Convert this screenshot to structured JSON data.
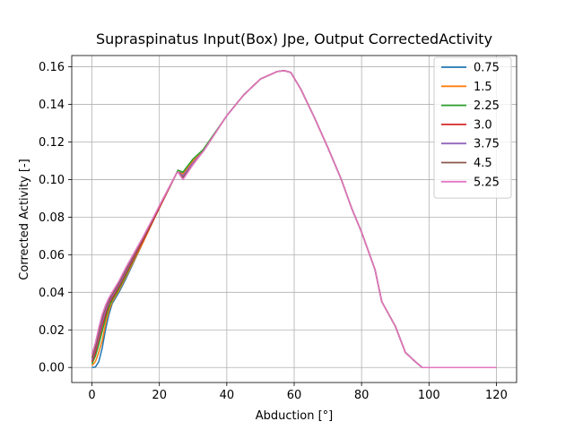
{
  "chart_data": {
    "type": "line",
    "title": "Supraspinatus Input(Box) Jpe, Output CorrectedActivity",
    "xlabel": "Abduction [°]",
    "ylabel": "Corrected Activity [-]",
    "xlim": [
      -6,
      126
    ],
    "ylim": [
      -0.008,
      0.166
    ],
    "xticks": [
      0,
      20,
      40,
      60,
      80,
      100,
      120
    ],
    "xtick_labels": [
      "0",
      "20",
      "40",
      "60",
      "80",
      "100",
      "120"
    ],
    "yticks": [
      0,
      0.02,
      0.04,
      0.06,
      0.08,
      0.1,
      0.12,
      0.14,
      0.16
    ],
    "ytick_labels": [
      "0.00",
      "0.02",
      "0.04",
      "0.06",
      "0.08",
      "0.10",
      "0.12",
      "0.14",
      "0.16"
    ],
    "grid": true,
    "legend_position": "top-right",
    "series": [
      {
        "name": "0.75",
        "color": "#1f77b4",
        "x": [
          0,
          1,
          2,
          3,
          4,
          5,
          6,
          8,
          10,
          15,
          20,
          25,
          25.5,
          27,
          30,
          33,
          40,
          45,
          50,
          55,
          57,
          59,
          62,
          66,
          70,
          74,
          77,
          80,
          84,
          86,
          90,
          93,
          96,
          98,
          100,
          120
        ],
        "y": [
          0.0,
          0.0002,
          0.003,
          0.01,
          0.02,
          0.028,
          0.034,
          0.04,
          0.047,
          0.066,
          0.085,
          0.103,
          0.104,
          0.1035,
          0.11,
          0.115,
          0.134,
          0.145,
          0.1535,
          0.1575,
          0.158,
          0.157,
          0.148,
          0.133,
          0.117,
          0.1,
          0.085,
          0.072,
          0.052,
          0.035,
          0.022,
          0.008,
          0.003,
          0.0,
          0.0,
          0.0
        ]
      },
      {
        "name": "1.5",
        "color": "#ff7f0e",
        "x": [
          0,
          1,
          2,
          3,
          4,
          5,
          6,
          8,
          10,
          15,
          20,
          25,
          25.5,
          27,
          30,
          33,
          40,
          45,
          50,
          55,
          57,
          59,
          62,
          66,
          70,
          74,
          77,
          80,
          84,
          86,
          90,
          93,
          96,
          98,
          100,
          120
        ],
        "y": [
          0.001,
          0.003,
          0.008,
          0.014,
          0.023,
          0.03,
          0.035,
          0.041,
          0.048,
          0.066,
          0.085,
          0.103,
          0.104,
          0.103,
          0.11,
          0.115,
          0.134,
          0.145,
          0.1535,
          0.1575,
          0.158,
          0.157,
          0.148,
          0.133,
          0.117,
          0.1,
          0.085,
          0.072,
          0.052,
          0.035,
          0.022,
          0.008,
          0.003,
          0.0,
          0.0,
          0.0
        ]
      },
      {
        "name": "2.25",
        "color": "#2ca02c",
        "x": [
          0,
          1,
          2,
          3,
          4,
          5,
          6,
          8,
          10,
          15,
          20,
          25,
          25.5,
          27,
          30,
          33,
          40,
          45,
          50,
          55,
          57,
          59,
          62,
          66,
          70,
          74,
          77,
          80,
          84,
          86,
          90,
          93,
          96,
          98,
          100,
          120
        ],
        "y": [
          0.002,
          0.006,
          0.012,
          0.019,
          0.026,
          0.032,
          0.036,
          0.042,
          0.049,
          0.067,
          0.085,
          0.103,
          0.105,
          0.104,
          0.111,
          0.116,
          0.134,
          0.145,
          0.1535,
          0.1575,
          0.158,
          0.157,
          0.148,
          0.133,
          0.117,
          0.1,
          0.085,
          0.072,
          0.052,
          0.035,
          0.022,
          0.008,
          0.003,
          0.0,
          0.0,
          0.0
        ]
      },
      {
        "name": "3.0",
        "color": "#d62728",
        "x": [
          0,
          1,
          2,
          3,
          4,
          5,
          6,
          8,
          10,
          15,
          20,
          25,
          25.5,
          27,
          30,
          33,
          40,
          45,
          50,
          55,
          57,
          59,
          62,
          66,
          70,
          74,
          77,
          80,
          84,
          86,
          90,
          93,
          96,
          98,
          100,
          120
        ],
        "y": [
          0.003,
          0.008,
          0.015,
          0.022,
          0.028,
          0.034,
          0.037,
          0.043,
          0.05,
          0.067,
          0.085,
          0.103,
          0.104,
          0.102,
          0.109,
          0.115,
          0.134,
          0.145,
          0.1535,
          0.1575,
          0.158,
          0.157,
          0.148,
          0.133,
          0.117,
          0.1,
          0.085,
          0.072,
          0.052,
          0.035,
          0.022,
          0.008,
          0.003,
          0.0,
          0.0,
          0.0
        ]
      },
      {
        "name": "3.75",
        "color": "#9467bd",
        "x": [
          0,
          1,
          2,
          3,
          4,
          5,
          6,
          8,
          10,
          15,
          20,
          25,
          25.5,
          27,
          30,
          33,
          40,
          45,
          50,
          55,
          57,
          59,
          62,
          66,
          70,
          74,
          77,
          80,
          84,
          86,
          90,
          93,
          96,
          98,
          100,
          120
        ],
        "y": [
          0.004,
          0.01,
          0.017,
          0.024,
          0.03,
          0.035,
          0.038,
          0.044,
          0.051,
          0.068,
          0.086,
          0.103,
          0.104,
          0.102,
          0.109,
          0.115,
          0.134,
          0.145,
          0.1535,
          0.1575,
          0.158,
          0.157,
          0.148,
          0.133,
          0.117,
          0.1,
          0.085,
          0.072,
          0.052,
          0.035,
          0.022,
          0.008,
          0.003,
          0.0,
          0.0,
          0.0
        ]
      },
      {
        "name": "4.5",
        "color": "#8c564b",
        "x": [
          0,
          1,
          2,
          3,
          4,
          5,
          6,
          8,
          10,
          15,
          20,
          25,
          25.5,
          27,
          30,
          33,
          40,
          45,
          50,
          55,
          57,
          59,
          62,
          66,
          70,
          74,
          77,
          80,
          84,
          86,
          90,
          93,
          96,
          98,
          100,
          120
        ],
        "y": [
          0.005,
          0.011,
          0.019,
          0.026,
          0.032,
          0.036,
          0.039,
          0.045,
          0.052,
          0.068,
          0.086,
          0.103,
          0.104,
          0.101,
          0.108,
          0.115,
          0.134,
          0.145,
          0.1535,
          0.1575,
          0.158,
          0.157,
          0.148,
          0.133,
          0.117,
          0.1,
          0.085,
          0.072,
          0.052,
          0.035,
          0.022,
          0.008,
          0.003,
          0.0,
          0.0,
          0.0
        ]
      },
      {
        "name": "5.25",
        "color": "#e377c2",
        "x": [
          0,
          1,
          2,
          3,
          4,
          5,
          6,
          8,
          10,
          15,
          20,
          25,
          25.5,
          27,
          30,
          33,
          40,
          45,
          50,
          55,
          57,
          59,
          62,
          66,
          70,
          74,
          77,
          80,
          84,
          86,
          90,
          93,
          96,
          98,
          100,
          120
        ],
        "y": [
          0.007,
          0.013,
          0.021,
          0.028,
          0.033,
          0.037,
          0.04,
          0.046,
          0.053,
          0.069,
          0.086,
          0.103,
          0.104,
          0.1,
          0.108,
          0.115,
          0.134,
          0.145,
          0.1535,
          0.1575,
          0.158,
          0.157,
          0.148,
          0.133,
          0.117,
          0.1,
          0.085,
          0.072,
          0.052,
          0.035,
          0.022,
          0.008,
          0.003,
          0.0,
          0.0,
          0.0
        ]
      }
    ]
  }
}
